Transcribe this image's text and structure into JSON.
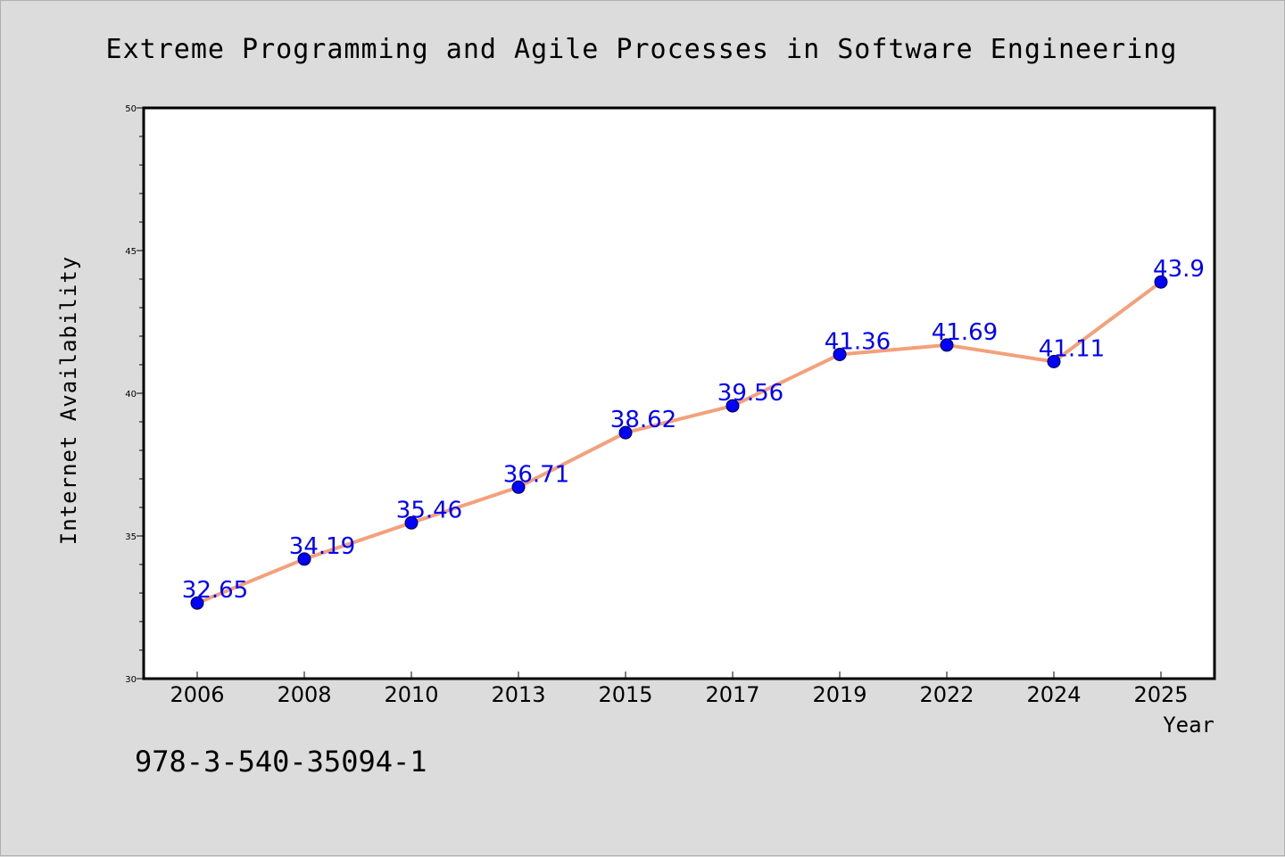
{
  "chart_data": {
    "type": "line",
    "title": "Extreme Programming and Agile Processes in Software Engineering",
    "xlabel": "Year",
    "ylabel": "Internet Availability",
    "categories": [
      "2006",
      "2008",
      "2010",
      "2013",
      "2015",
      "2017",
      "2019",
      "2022",
      "2024",
      "2025"
    ],
    "series": [
      {
        "values": [
          32.65,
          34.19,
          35.46,
          36.71,
          38.62,
          39.56,
          41.36,
          41.69,
          41.11,
          43.9
        ],
        "data_labels": [
          "32.65",
          "34.19",
          "35.46",
          "36.71",
          "38.62",
          "39.56",
          "41.36",
          "41.69",
          "41.11",
          "43.9"
        ],
        "line_color": "#f4a07a",
        "marker_color": "#0000ff"
      }
    ],
    "ylim": [
      30,
      50
    ],
    "yticks": [
      "30",
      "35",
      "40",
      "45",
      "50"
    ],
    "grid": false,
    "legend": "none"
  },
  "footer": {
    "isbn": "978-3-540-35094-1"
  }
}
